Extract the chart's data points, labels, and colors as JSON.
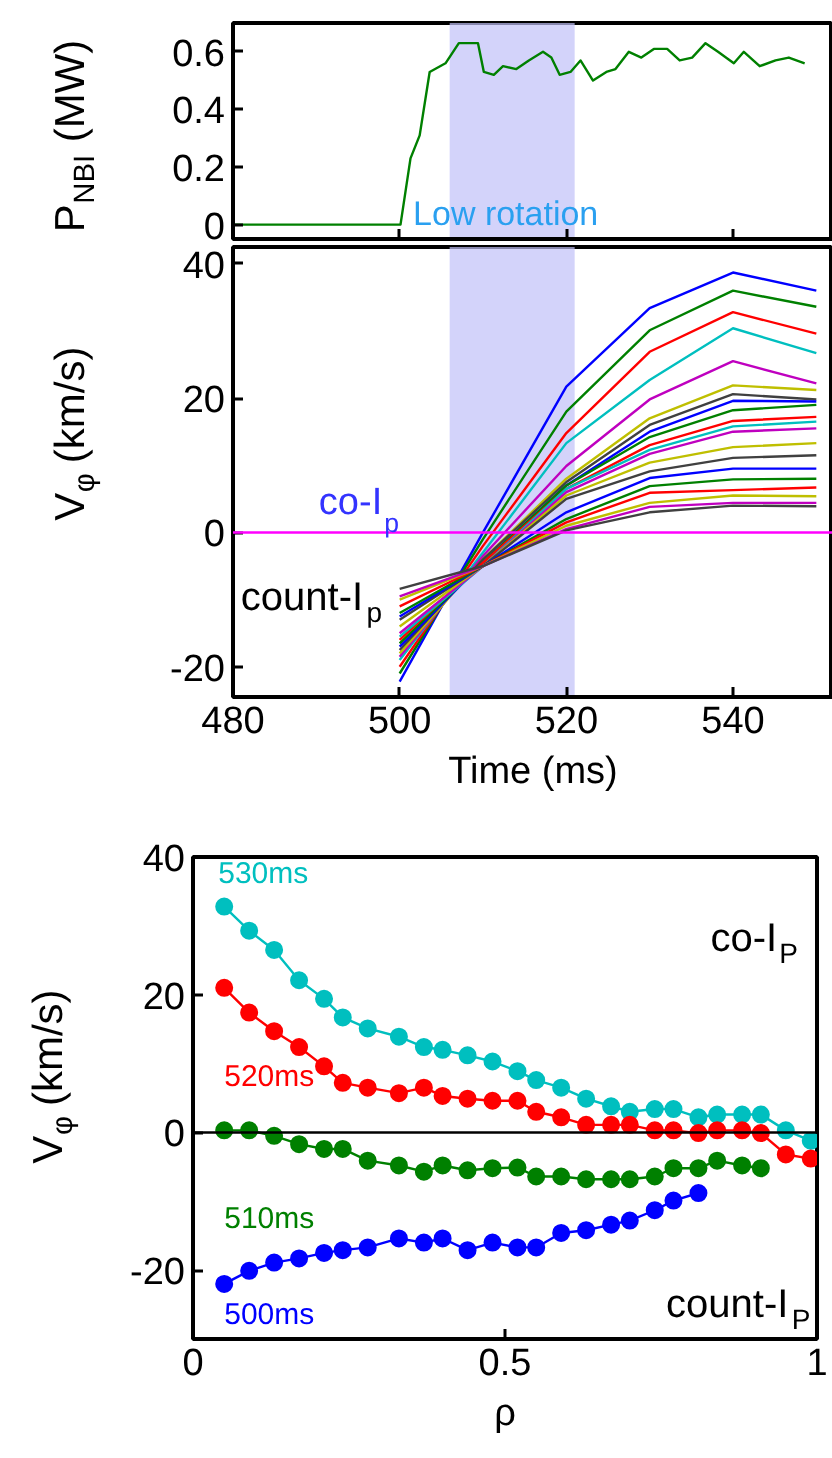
{
  "chart_data": [
    {
      "type": "line",
      "ylabel": "P$_{NBI}$ (MW)",
      "xlim": [
        480,
        552
      ],
      "ylim": [
        -0.05,
        0.7
      ],
      "xticks": [
        480,
        500,
        520,
        540
      ],
      "yticks": [
        0,
        0.2,
        0.4,
        0.6
      ],
      "tick_labels": "y",
      "bands": [
        {
          "axis": "x",
          "from": 506,
          "to": 521,
          "label": "Low rotation",
          "color": "#c0c0f8"
        }
      ],
      "series": [
        {
          "color": "#008000",
          "x": [
            480.2,
            500.1,
            501.3,
            502.4,
            503.6,
            505.5,
            507.1,
            509.4,
            510.1,
            511.3,
            512.4,
            514,
            515.5,
            517.2,
            518.2,
            519.2,
            520.5,
            521.7,
            523.2,
            524.8,
            525.9,
            527.5,
            529,
            530.5,
            532.1,
            533.6,
            535.1,
            536.7,
            538.2,
            540.1,
            541.3,
            543.2,
            545.1,
            546.7,
            548.6
          ],
          "values": [
            0,
            0,
            0.23,
            0.31,
            0.53,
            0.56,
            0.63,
            0.63,
            0.53,
            0.52,
            0.55,
            0.54,
            0.57,
            0.6,
            0.58,
            0.52,
            0.53,
            0.57,
            0.5,
            0.53,
            0.54,
            0.6,
            0.58,
            0.61,
            0.61,
            0.57,
            0.58,
            0.63,
            0.6,
            0.56,
            0.6,
            0.55,
            0.57,
            0.58,
            0.56
          ]
        }
      ]
    },
    {
      "type": "line",
      "xlabel": "Time (ms)",
      "ylabel": "V$_{φ}$ (km/s)",
      "xlim": [
        480,
        552
      ],
      "ylim": [
        -24.5,
        42.5
      ],
      "xticks": [
        480,
        500,
        520,
        540
      ],
      "yticks": [
        -20,
        0,
        20,
        40
      ],
      "x": [
        500,
        510,
        520,
        530,
        540,
        550
      ],
      "bands": [
        {
          "axis": "x",
          "from": 506,
          "to": 521,
          "color": "#c0c0f8"
        }
      ],
      "ref_lines": [
        {
          "axis": "y",
          "value": 0,
          "label": "co-I$_{p}$",
          "color": "#ff00ff"
        }
      ],
      "annotations": [
        "count-I$_{p}$"
      ],
      "series": [
        {
          "color": "#0000ff",
          "values": [
            -22.2,
            0,
            21.7,
            33.4,
            38.7,
            36
          ]
        },
        {
          "color": "#008000",
          "values": [
            -21,
            -1,
            18,
            30.1,
            36,
            33.6
          ]
        },
        {
          "color": "#ff0000",
          "values": [
            -20,
            -2,
            14.8,
            26.9,
            32.8,
            29.6
          ]
        },
        {
          "color": "#00bfbf",
          "values": [
            -19,
            -3,
            13.3,
            22.7,
            30.4,
            26.7
          ]
        },
        {
          "color": "#bf00bf",
          "values": [
            -18.5,
            -3.5,
            9.9,
            19.8,
            25.5,
            22.2
          ]
        },
        {
          "color": "#bfbf00",
          "values": [
            -18,
            -4,
            8,
            17,
            21.9,
            21.2
          ]
        },
        {
          "color": "#404040",
          "values": [
            -17.5,
            -4,
            7.5,
            16,
            20.6,
            19.8
          ]
        },
        {
          "color": "#0000ff",
          "values": [
            -17,
            -4.5,
            7,
            15,
            19.6,
            19.5
          ]
        },
        {
          "color": "#008000",
          "values": [
            -16.5,
            -4.5,
            7,
            14.2,
            18.2,
            19
          ]
        },
        {
          "color": "#ff0000",
          "values": [
            -16,
            -4.5,
            6.5,
            13,
            16.6,
            17.2
          ]
        },
        {
          "color": "#00bfbf",
          "values": [
            -15.5,
            -5,
            6.5,
            12.3,
            15.8,
            16.5
          ]
        },
        {
          "color": "#bf00bf",
          "values": [
            -15,
            -5,
            6,
            11.7,
            15,
            15.5
          ]
        },
        {
          "color": "#bfbf00",
          "values": [
            -14,
            -5,
            5.5,
            10.4,
            12.7,
            13.3
          ]
        },
        {
          "color": "#404040",
          "values": [
            -13,
            -5,
            5,
            9.1,
            11.1,
            11.5
          ]
        },
        {
          "color": "#0000ff",
          "values": [
            -12.5,
            -5,
            3,
            8.1,
            9.5,
            9.5
          ]
        },
        {
          "color": "#008000",
          "values": [
            -12,
            -5,
            2,
            6.9,
            7.9,
            8
          ]
        },
        {
          "color": "#ff0000",
          "values": [
            -11,
            -5,
            1.5,
            5.9,
            6.3,
            6.7
          ]
        },
        {
          "color": "#bfbf00",
          "values": [
            -10,
            -5,
            1,
            4.4,
            5.5,
            5.4
          ]
        },
        {
          "color": "#bf00bf",
          "values": [
            -9.5,
            -5,
            0.5,
            3.8,
            4.4,
            4.4
          ]
        },
        {
          "color": "#404040",
          "values": [
            -8.4,
            -5,
            0.3,
            3,
            4,
            3.9
          ]
        }
      ]
    },
    {
      "type": "line",
      "marker": "circle",
      "xlabel": "ρ",
      "ylabel": "V$_{φ}$ (km/s)",
      "xlim": [
        0,
        1
      ],
      "ylim": [
        -30,
        40
      ],
      "xticks": [
        0,
        0.5,
        1
      ],
      "yticks": [
        -20,
        0,
        20,
        40
      ],
      "ref_lines": [
        {
          "axis": "y",
          "value": 0,
          "color": "#000000"
        }
      ],
      "annotations": [
        "co-I$_{P}$",
        "count-I$_{P}$"
      ],
      "series": [
        {
          "name": "530ms",
          "color": "#00bfbf",
          "x": [
            0.05,
            0.09,
            0.13,
            0.17,
            0.21,
            0.24,
            0.28,
            0.33,
            0.37,
            0.4,
            0.44,
            0.48,
            0.52,
            0.55,
            0.59,
            0.63,
            0.67,
            0.7,
            0.74,
            0.77,
            0.81,
            0.84,
            0.88,
            0.91,
            0.95,
            0.99
          ],
          "values": [
            32.8,
            29.3,
            26.5,
            22.1,
            19.4,
            16.7,
            15.1,
            13.9,
            12.4,
            12,
            11.2,
            10.3,
            8.9,
            7.6,
            6.5,
            4.9,
            3.8,
            3,
            3.4,
            3.4,
            2.2,
            2.6,
            2.6,
            2.6,
            0.3,
            -1.2
          ]
        },
        {
          "name": "520ms",
          "color": "#ff0000",
          "x": [
            0.05,
            0.09,
            0.13,
            0.17,
            0.21,
            0.24,
            0.28,
            0.33,
            0.37,
            0.4,
            0.44,
            0.48,
            0.52,
            0.55,
            0.59,
            0.63,
            0.67,
            0.7,
            0.74,
            0.77,
            0.81,
            0.84,
            0.88,
            0.91,
            0.95,
            0.99
          ],
          "values": [
            21,
            17.4,
            14.7,
            12.4,
            9.6,
            7.2,
            6.5,
            5.7,
            6.5,
            5.3,
            4.9,
            4.6,
            4.6,
            3,
            2.2,
            1.1,
            1.1,
            1.1,
            0.3,
            0.3,
            -0.1,
            0.3,
            0.3,
            -0.1,
            -3.2,
            -3.8
          ]
        },
        {
          "name": "510ms",
          "color": "#008000",
          "x": [
            0.05,
            0.09,
            0.13,
            0.17,
            0.21,
            0.24,
            0.28,
            0.33,
            0.37,
            0.4,
            0.44,
            0.48,
            0.52,
            0.55,
            0.59,
            0.63,
            0.67,
            0.7,
            0.74,
            0.77,
            0.81,
            0.84,
            0.88,
            0.91
          ],
          "values": [
            0.3,
            0.3,
            -0.5,
            -1.7,
            -2.4,
            -2.4,
            -4.1,
            -4.8,
            -5.7,
            -4.8,
            -5.5,
            -5.2,
            -5.1,
            -6.4,
            -6.4,
            -6.8,
            -6.8,
            -6.8,
            -6.4,
            -5.2,
            -5.2,
            -4.1,
            -4.8,
            -5.2
          ]
        },
        {
          "name": "500ms",
          "color": "#0000ff",
          "x": [
            0.05,
            0.09,
            0.13,
            0.17,
            0.21,
            0.24,
            0.28,
            0.33,
            0.37,
            0.4,
            0.44,
            0.48,
            0.52,
            0.55,
            0.59,
            0.63,
            0.67,
            0.7,
            0.74,
            0.77,
            0.81
          ],
          "values": [
            -22,
            -20.1,
            -18.9,
            -18.3,
            -17.5,
            -17.1,
            -16.7,
            -15.4,
            -16,
            -15.4,
            -17.1,
            -16,
            -16.7,
            -16.7,
            -14.6,
            -14.2,
            -13.4,
            -12.8,
            -11.3,
            -9.9,
            -8.8
          ]
        }
      ]
    }
  ]
}
